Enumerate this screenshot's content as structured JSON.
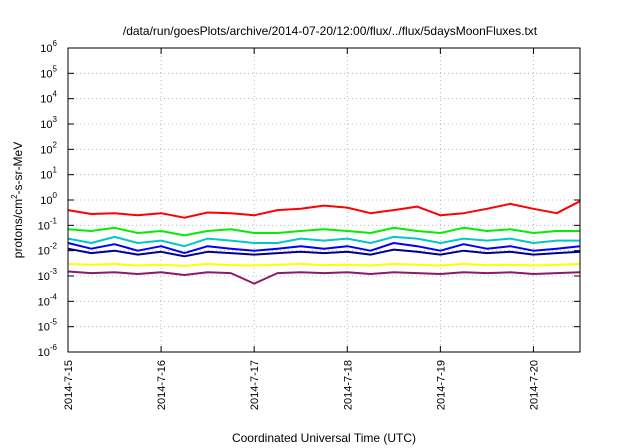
{
  "chart_data": {
    "type": "line",
    "title": "/data/run/goesPlots/archive/2014-07-20/12:00/flux/../flux/5daysMoonFluxes.txt",
    "xlabel": "Coordinated Universal Time (UTC)",
    "ylabel": {
      "prefix": "protons/cm",
      "superscript": "2",
      "suffix": "-s-sr-MeV"
    },
    "y_scale": "log",
    "grid": true,
    "xlim": [
      "2014-07-15T00:00",
      "2014-07-20T12:00"
    ],
    "ylim": [
      1e-06,
      1000000.0
    ],
    "x_ticks": [
      {
        "date": "2014-07-15T00:00",
        "label": "2014-7-15"
      },
      {
        "date": "2014-07-16T00:00",
        "label": "2014-7-16"
      },
      {
        "date": "2014-07-17T00:00",
        "label": "2014-7-17"
      },
      {
        "date": "2014-07-18T00:00",
        "label": "2014-7-18"
      },
      {
        "date": "2014-07-19T00:00",
        "label": "2014-7-19"
      },
      {
        "date": "2014-07-20T00:00",
        "label": "2014-7-20"
      }
    ],
    "y_ticks": [
      {
        "exp": -6,
        "base": "10",
        "sup": "-6"
      },
      {
        "exp": -5,
        "base": "10",
        "sup": "-5"
      },
      {
        "exp": -4,
        "base": "10",
        "sup": "-4"
      },
      {
        "exp": -3,
        "base": "10",
        "sup": "-3"
      },
      {
        "exp": -2,
        "base": "10",
        "sup": "-2"
      },
      {
        "exp": -1,
        "base": "10",
        "sup": "-1"
      },
      {
        "exp": 0,
        "base": "10",
        "sup": "0"
      },
      {
        "exp": 1,
        "base": "10",
        "sup": "1"
      },
      {
        "exp": 2,
        "base": "10",
        "sup": "2"
      },
      {
        "exp": 3,
        "base": "10",
        "sup": "3"
      },
      {
        "exp": 4,
        "base": "10",
        "sup": "4"
      },
      {
        "exp": 5,
        "base": "10",
        "sup": "5"
      },
      {
        "exp": 6,
        "base": "10",
        "sup": "6"
      }
    ],
    "x": [
      "2014-07-15T00:00",
      "2014-07-15T06:00",
      "2014-07-15T12:00",
      "2014-07-15T18:00",
      "2014-07-16T00:00",
      "2014-07-16T06:00",
      "2014-07-16T12:00",
      "2014-07-16T18:00",
      "2014-07-17T00:00",
      "2014-07-17T06:00",
      "2014-07-17T12:00",
      "2014-07-17T18:00",
      "2014-07-18T00:00",
      "2014-07-18T06:00",
      "2014-07-18T12:00",
      "2014-07-18T18:00",
      "2014-07-19T00:00",
      "2014-07-19T06:00",
      "2014-07-19T12:00",
      "2014-07-19T18:00",
      "2014-07-20T00:00",
      "2014-07-20T06:00",
      "2014-07-20T12:00"
    ],
    "series": [
      {
        "color": "#ff0000",
        "values": [
          0.4,
          0.28,
          0.3,
          0.25,
          0.3,
          0.2,
          0.32,
          0.3,
          0.25,
          0.4,
          0.45,
          0.6,
          0.5,
          0.3,
          0.4,
          0.55,
          0.25,
          0.3,
          0.45,
          0.7,
          0.45,
          0.3,
          0.9
        ]
      },
      {
        "color": "#00ee00",
        "values": [
          0.07,
          0.06,
          0.08,
          0.05,
          0.06,
          0.04,
          0.06,
          0.07,
          0.05,
          0.05,
          0.06,
          0.07,
          0.06,
          0.05,
          0.08,
          0.06,
          0.05,
          0.08,
          0.06,
          0.07,
          0.05,
          0.06,
          0.06
        ]
      },
      {
        "color": "#00c8c8",
        "values": [
          0.03,
          0.02,
          0.035,
          0.02,
          0.025,
          0.015,
          0.03,
          0.025,
          0.02,
          0.02,
          0.03,
          0.025,
          0.03,
          0.02,
          0.035,
          0.03,
          0.02,
          0.03,
          0.025,
          0.03,
          0.02,
          0.025,
          0.025
        ]
      },
      {
        "color": "#0000ff",
        "values": [
          0.02,
          0.012,
          0.018,
          0.01,
          0.015,
          0.008,
          0.015,
          0.012,
          0.01,
          0.012,
          0.015,
          0.012,
          0.015,
          0.01,
          0.02,
          0.015,
          0.01,
          0.018,
          0.012,
          0.015,
          0.01,
          0.012,
          0.015
        ]
      },
      {
        "color": "#00008b",
        "values": [
          0.012,
          0.008,
          0.01,
          0.007,
          0.009,
          0.006,
          0.009,
          0.008,
          0.007,
          0.008,
          0.009,
          0.008,
          0.009,
          0.007,
          0.011,
          0.009,
          0.007,
          0.01,
          0.008,
          0.009,
          0.007,
          0.008,
          0.009
        ]
      },
      {
        "color": "#ffff00",
        "values": [
          0.003,
          0.0028,
          0.003,
          0.0026,
          0.0028,
          0.0025,
          0.003,
          0.0027,
          0.0026,
          0.0028,
          0.003,
          0.0027,
          0.0028,
          0.0026,
          0.003,
          0.0028,
          0.0026,
          0.003,
          0.0027,
          0.0028,
          0.0026,
          0.0028,
          0.003
        ]
      },
      {
        "color": "#8b1a6b",
        "values": [
          0.0015,
          0.0013,
          0.0014,
          0.0012,
          0.0014,
          0.0011,
          0.0014,
          0.0013,
          0.0005,
          0.0013,
          0.0014,
          0.0013,
          0.0014,
          0.0012,
          0.0014,
          0.0013,
          0.0012,
          0.0014,
          0.0013,
          0.0014,
          0.0012,
          0.0013,
          0.0014
        ]
      }
    ]
  }
}
